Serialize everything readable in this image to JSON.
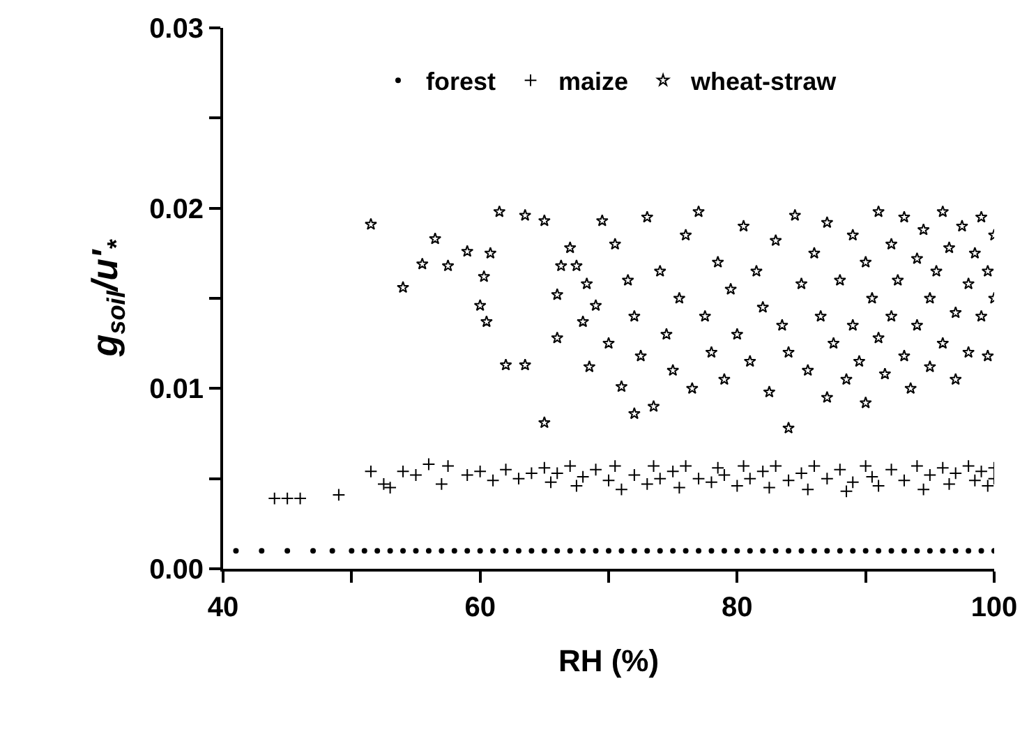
{
  "chart_data": {
    "type": "scatter",
    "xlabel": "RH (%)",
    "ylabel": "g$_{soil}$/u'$_{*}$",
    "xlim": [
      40,
      100
    ],
    "xticks": [
      40,
      {
        "value": 50,
        "label": null
      },
      60,
      {
        "value": 70,
        "label": null
      },
      80,
      {
        "value": 90,
        "label": null
      },
      100
    ],
    "ylim": [
      0,
      0.03
    ],
    "yticks": [
      "0.00",
      {
        "value": 0.005,
        "label": null
      },
      {
        "value": 0.01,
        "label": "0.01"
      },
      {
        "value": 0.015,
        "label": null
      },
      {
        "value": 0.02,
        "label": "0.02"
      },
      {
        "value": 0.025,
        "label": null
      },
      {
        "value": 0.03,
        "label": "0.03"
      }
    ],
    "grid": false,
    "legend": "top",
    "series": [
      {
        "name": "forest",
        "color": "#000000",
        "marker": "circle",
        "x": [
          41,
          43,
          45,
          47,
          48.5,
          50,
          51,
          52,
          53,
          54,
          55,
          56,
          57,
          58,
          59,
          60,
          61,
          62,
          63,
          64,
          65,
          66,
          67,
          68,
          69,
          70,
          71,
          72,
          73,
          74,
          75,
          76,
          77,
          78,
          79,
          80,
          81,
          82,
          83,
          84,
          85,
          86,
          87,
          88,
          89,
          90,
          91,
          92,
          93,
          94,
          95,
          96,
          97,
          98,
          99,
          100
        ],
        "values": [
          0.001,
          0.001,
          0.001,
          0.001,
          0.001,
          0.001,
          0.001,
          0.001,
          0.001,
          0.001,
          0.001,
          0.001,
          0.001,
          0.001,
          0.001,
          0.001,
          0.001,
          0.001,
          0.001,
          0.001,
          0.001,
          0.001,
          0.001,
          0.001,
          0.001,
          0.001,
          0.001,
          0.001,
          0.001,
          0.001,
          0.001,
          0.001,
          0.001,
          0.001,
          0.001,
          0.001,
          0.001,
          0.001,
          0.001,
          0.001,
          0.001,
          0.001,
          0.001,
          0.001,
          0.001,
          0.001,
          0.001,
          0.001,
          0.001,
          0.001,
          0.001,
          0.001,
          0.001,
          0.001,
          0.001,
          0.001
        ]
      },
      {
        "name": "maize",
        "color": "#000000",
        "marker": "cross",
        "x": [
          44,
          45,
          46,
          49,
          51.5,
          52.5,
          53,
          54,
          55,
          56,
          57,
          57.5,
          59,
          60,
          61,
          62,
          63,
          64,
          65,
          65.5,
          66,
          67,
          67.5,
          68,
          69,
          70,
          70.5,
          71,
          72,
          73,
          73.5,
          74,
          75,
          75.5,
          76,
          77,
          78,
          78.5,
          79,
          80,
          80.5,
          81,
          82,
          82.5,
          83,
          84,
          85,
          85.5,
          86,
          87,
          88,
          88.5,
          89,
          90,
          90.5,
          91,
          92,
          93,
          94,
          94.5,
          95,
          96,
          96.5,
          97,
          98,
          98.5,
          99,
          99.5,
          100,
          100
        ],
        "values": [
          0.0039,
          0.0039,
          0.0039,
          0.0041,
          0.0054,
          0.0047,
          0.0045,
          0.0054,
          0.0052,
          0.0058,
          0.0047,
          0.0057,
          0.0052,
          0.0054,
          0.0049,
          0.0055,
          0.005,
          0.0053,
          0.0056,
          0.0048,
          0.0053,
          0.0057,
          0.0046,
          0.0051,
          0.0055,
          0.0049,
          0.0057,
          0.0044,
          0.0052,
          0.0047,
          0.0057,
          0.005,
          0.0054,
          0.0045,
          0.0057,
          0.005,
          0.0048,
          0.0056,
          0.0052,
          0.0046,
          0.0057,
          0.005,
          0.0054,
          0.0045,
          0.0057,
          0.0049,
          0.0053,
          0.0044,
          0.0057,
          0.005,
          0.0055,
          0.0043,
          0.0048,
          0.0057,
          0.0051,
          0.0046,
          0.0055,
          0.0049,
          0.0057,
          0.0044,
          0.0052,
          0.0056,
          0.0047,
          0.0053,
          0.0057,
          0.0049,
          0.0054,
          0.0046,
          0.0056,
          0.005
        ]
      },
      {
        "name": "wheat-straw",
        "color": "#000000",
        "marker": "star",
        "x": [
          51.5,
          54,
          55.5,
          56.5,
          57.5,
          59,
          60,
          60.3,
          60.5,
          60.8,
          61.5,
          62,
          63.5,
          63.5,
          65,
          65,
          66,
          66.3,
          66,
          67,
          67.5,
          68,
          68.3,
          68.5,
          69,
          69.5,
          70,
          70.5,
          71,
          71.5,
          72,
          72,
          72.5,
          73,
          73.5,
          74,
          74.5,
          75,
          75.5,
          76,
          76.5,
          77,
          77.5,
          78,
          78.5,
          79,
          79.5,
          80,
          80.5,
          81,
          81.5,
          82,
          82.5,
          83,
          83.5,
          84,
          84,
          84.5,
          85,
          85.5,
          86,
          86.5,
          87,
          87,
          87.5,
          88,
          88.5,
          89,
          89,
          89.5,
          90,
          90,
          90.5,
          91,
          91,
          91.5,
          92,
          92,
          92.5,
          93,
          93,
          93.5,
          94,
          94,
          94.5,
          95,
          95,
          95.5,
          96,
          96,
          96.5,
          97,
          97,
          97.5,
          98,
          98,
          98.5,
          99,
          99,
          99.5,
          99.5,
          100,
          100
        ],
        "values": [
          0.0191,
          0.0156,
          0.0169,
          0.0183,
          0.0168,
          0.0176,
          0.0146,
          0.0162,
          0.0137,
          0.0175,
          0.0198,
          0.0113,
          0.0113,
          0.0196,
          0.0081,
          0.0193,
          0.0152,
          0.0168,
          0.0128,
          0.0178,
          0.0168,
          0.0137,
          0.0158,
          0.0112,
          0.0146,
          0.0193,
          0.0125,
          0.018,
          0.0101,
          0.016,
          0.0086,
          0.014,
          0.0118,
          0.0195,
          0.009,
          0.0165,
          0.013,
          0.011,
          0.015,
          0.0185,
          0.01,
          0.0198,
          0.014,
          0.012,
          0.017,
          0.0105,
          0.0155,
          0.013,
          0.019,
          0.0115,
          0.0165,
          0.0145,
          0.0098,
          0.0182,
          0.0135,
          0.0078,
          0.012,
          0.0196,
          0.0158,
          0.011,
          0.0175,
          0.014,
          0.0095,
          0.0192,
          0.0125,
          0.016,
          0.0105,
          0.0185,
          0.0135,
          0.0115,
          0.017,
          0.0092,
          0.015,
          0.0198,
          0.0128,
          0.0108,
          0.018,
          0.014,
          0.016,
          0.0118,
          0.0195,
          0.01,
          0.0172,
          0.0135,
          0.0188,
          0.015,
          0.0112,
          0.0165,
          0.0198,
          0.0125,
          0.0178,
          0.0142,
          0.0105,
          0.019,
          0.0158,
          0.012,
          0.0175,
          0.0195,
          0.014,
          0.0165,
          0.0118,
          0.0185,
          0.015
        ]
      }
    ]
  }
}
